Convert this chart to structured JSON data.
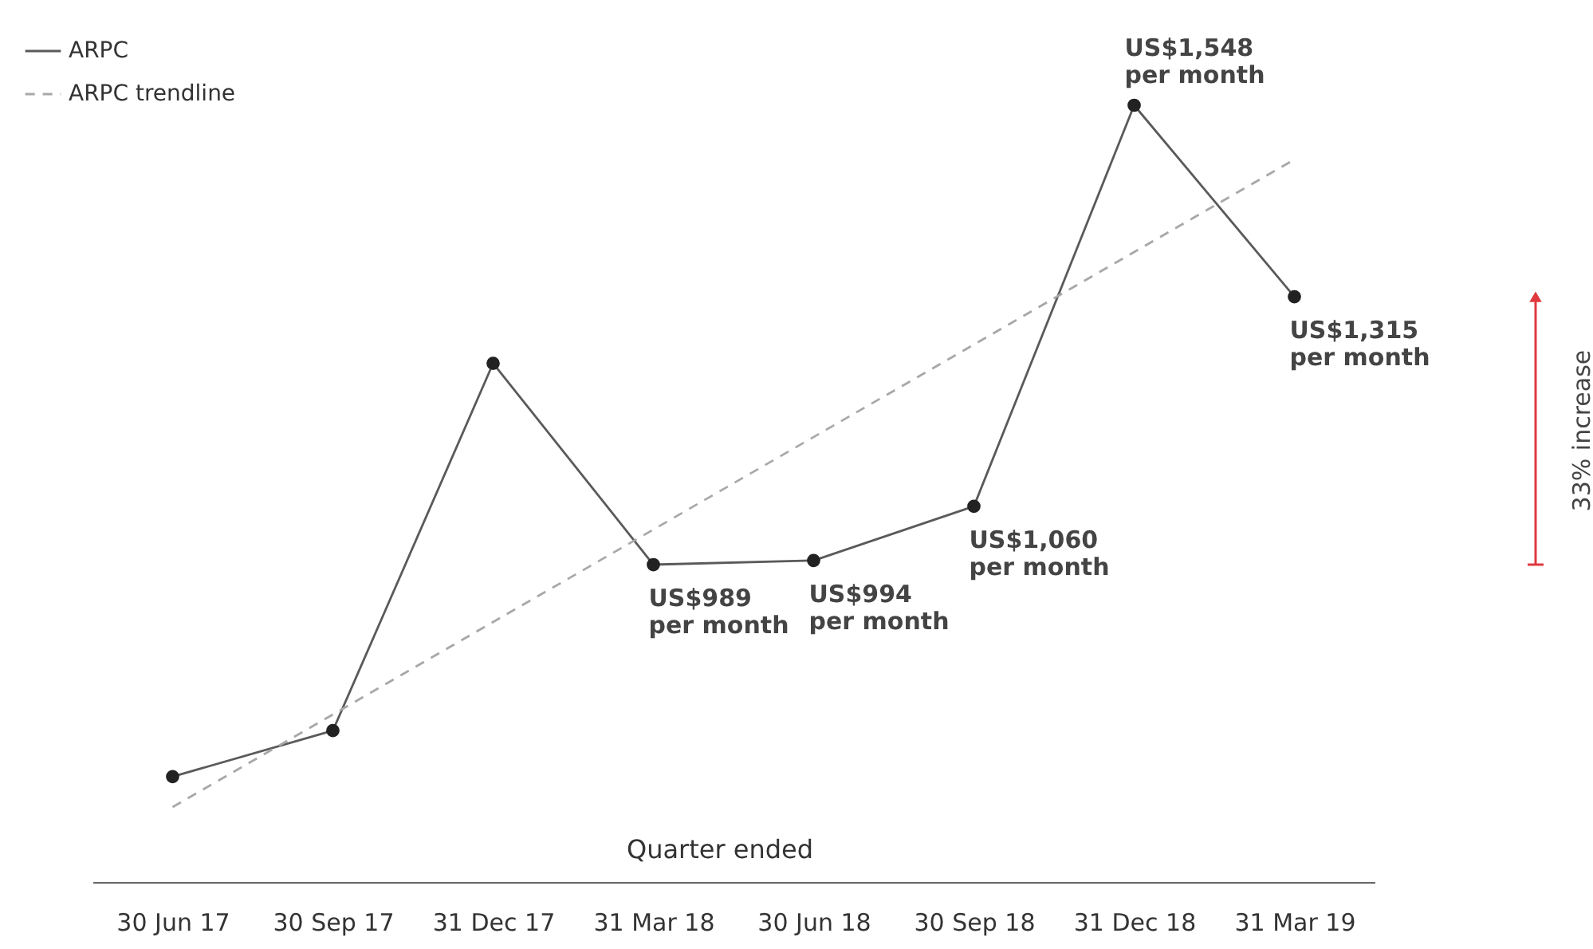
{
  "chart_data": {
    "type": "line",
    "xlabel": "Quarter ended",
    "categories": [
      "30 Jun 17",
      "30 Sep 17",
      "31 Dec 17",
      "31 Mar 18",
      "30 Jun 18",
      "30 Sep 18",
      "31 Dec 18",
      "31 Mar 19"
    ],
    "series": [
      {
        "name": "ARPC",
        "color": "#5a5a5a",
        "marker": "circle",
        "line_style": "solid",
        "values": [
          731,
          787,
          1234,
          989,
          994,
          1060,
          1548,
          1315
        ],
        "value_labels": [
          null,
          null,
          null,
          "US$989\nper month",
          "US$994\nper month",
          "US$1,060\nper month",
          "US$1,548\nper month",
          "US$1,315\nper month"
        ]
      },
      {
        "name": "ARPC trendline",
        "type": "line",
        "color": "#a8a8a8",
        "marker": "none",
        "line_style": "dashed",
        "x": [
          "30 Jun 17",
          "31 Mar 19"
        ],
        "values": [
          694,
          1482
        ]
      }
    ],
    "tick_labels": "x",
    "grid": false,
    "legend": "top left",
    "annotations": [
      "33% increase"
    ]
  }
}
